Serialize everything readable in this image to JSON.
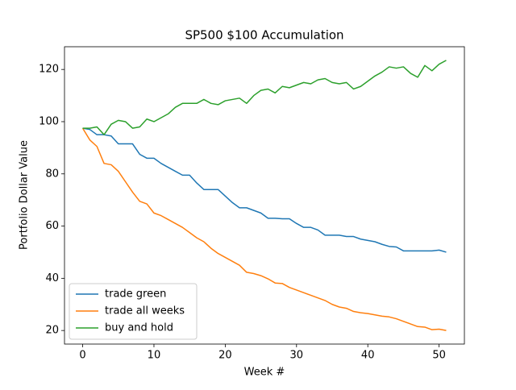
{
  "chart_data": {
    "type": "line",
    "title": "SP500 $100 Accumulation",
    "x_label": "Week #",
    "y_label": "Portfolio Dollar Value",
    "x": [
      0,
      1,
      2,
      3,
      4,
      5,
      6,
      7,
      8,
      9,
      10,
      11,
      12,
      13,
      14,
      15,
      16,
      17,
      18,
      19,
      20,
      21,
      22,
      23,
      24,
      25,
      26,
      27,
      28,
      29,
      30,
      31,
      32,
      33,
      34,
      35,
      36,
      37,
      38,
      39,
      40,
      41,
      42,
      43,
      44,
      45,
      46,
      47,
      48,
      49,
      50,
      51
    ],
    "series": [
      {
        "name": "trade green",
        "color": "#1f77b4",
        "values": [
          97.5,
          97,
          95,
          95,
          94.5,
          91.5,
          91.5,
          91.5,
          87.5,
          86,
          86,
          84,
          82.5,
          81,
          79.5,
          79.5,
          76.5,
          74,
          74,
          74,
          71.5,
          69,
          67,
          67,
          66,
          65,
          63,
          63,
          62.8,
          62.8,
          61,
          59.5,
          59.5,
          58.5,
          56.5,
          56.5,
          56.5,
          56,
          56,
          55,
          54.5,
          54,
          53,
          52.2,
          52,
          50.5,
          50.5,
          50.5,
          50.5,
          50.5,
          50.8,
          50
        ]
      },
      {
        "name": "trade all weeks",
        "color": "#ff7f0e",
        "values": [
          97.5,
          93,
          90.5,
          84,
          83.5,
          81,
          77,
          73,
          69.5,
          68.5,
          65,
          64,
          62.5,
          61,
          59.5,
          57.5,
          55.5,
          54,
          51.5,
          49.5,
          48,
          46.5,
          45,
          42.3,
          41.8,
          41,
          39.8,
          38.2,
          38,
          36.5,
          35.5,
          34.5,
          33.5,
          32.5,
          31.5,
          30,
          29,
          28.5,
          27.3,
          26.8,
          26.5,
          26,
          25.5,
          25.2,
          24.5,
          23.5,
          22.5,
          21.5,
          21.3,
          20.3,
          20.5,
          20
        ]
      },
      {
        "name": "buy and hold",
        "color": "#2ca02c",
        "values": [
          97.5,
          97.5,
          98,
          95,
          99,
          100.5,
          100,
          97.5,
          98,
          101,
          100,
          101.5,
          103,
          105.5,
          107,
          107,
          107,
          108.5,
          107,
          106.5,
          108,
          108.5,
          109,
          107,
          110,
          112,
          112.5,
          111,
          113.5,
          113,
          114,
          115,
          114.5,
          116,
          116.5,
          115,
          114.5,
          115,
          112.5,
          113.5,
          115.5,
          117.5,
          119,
          121,
          120.5,
          121,
          118.5,
          117,
          121.5,
          119.5,
          122,
          123.5
        ]
      }
    ],
    "xlim": [
      -2.55,
      53.55
    ],
    "ylim": [
      14.8,
      128.7
    ],
    "xticks": [
      0,
      10,
      20,
      30,
      40,
      50
    ],
    "yticks": [
      20,
      40,
      60,
      80,
      100,
      120
    ],
    "grid": false,
    "legend": "lower left"
  }
}
